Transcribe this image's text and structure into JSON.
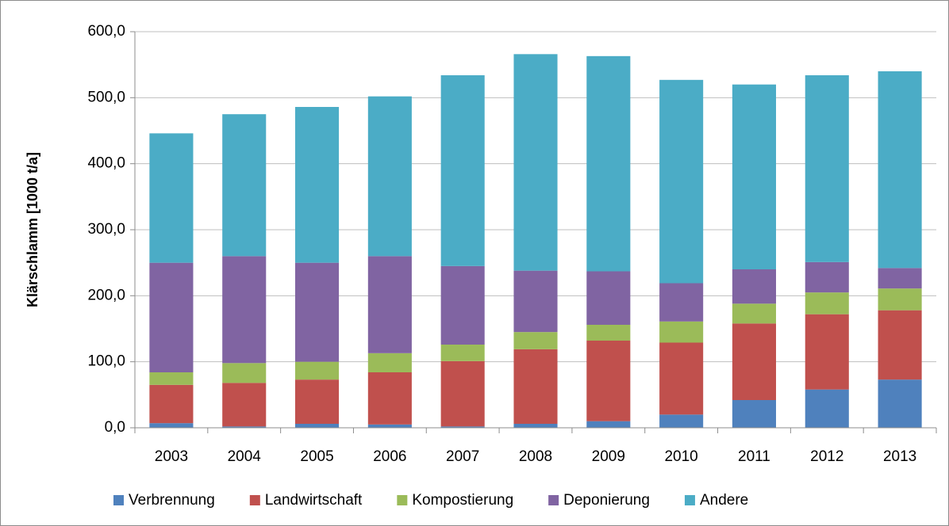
{
  "chart_data": {
    "type": "stacked_bar",
    "y_axis_label": "Klärschlamm [1000 t/a]",
    "categories": [
      "2003",
      "2004",
      "2005",
      "2006",
      "2007",
      "2008",
      "2009",
      "2010",
      "2011",
      "2012",
      "2013"
    ],
    "series": [
      {
        "name": "Verbrennung",
        "color": "#4f81bd",
        "values": [
          7,
          2,
          6,
          5,
          2,
          6,
          10,
          20,
          42,
          58,
          73
        ]
      },
      {
        "name": "Landwirtschaft",
        "color": "#c0504d",
        "values": [
          58,
          66,
          67,
          79,
          99,
          113,
          122,
          109,
          116,
          114,
          105
        ]
      },
      {
        "name": "Kompostierung",
        "color": "#9bbb59",
        "values": [
          19,
          30,
          27,
          29,
          25,
          26,
          24,
          32,
          30,
          33,
          33
        ]
      },
      {
        "name": "Deponierung",
        "color": "#8064a2",
        "values": [
          166,
          162,
          150,
          147,
          119,
          93,
          81,
          58,
          52,
          46,
          31
        ]
      },
      {
        "name": "Andere",
        "color": "#4bacc6",
        "values": [
          196,
          215,
          236,
          242,
          289,
          328,
          326,
          308,
          280,
          283,
          298
        ]
      }
    ],
    "ylim": [
      0,
      600
    ],
    "yticks": [
      {
        "value": 0,
        "label": "0,0"
      },
      {
        "value": 100,
        "label": "100,0"
      },
      {
        "value": 200,
        "label": "200,0"
      },
      {
        "value": 300,
        "label": "300,0"
      },
      {
        "value": 400,
        "label": "400,0"
      },
      {
        "value": 500,
        "label": "500,0"
      },
      {
        "value": 600,
        "label": "600,0"
      }
    ],
    "grid": true,
    "legend": "bottom"
  }
}
